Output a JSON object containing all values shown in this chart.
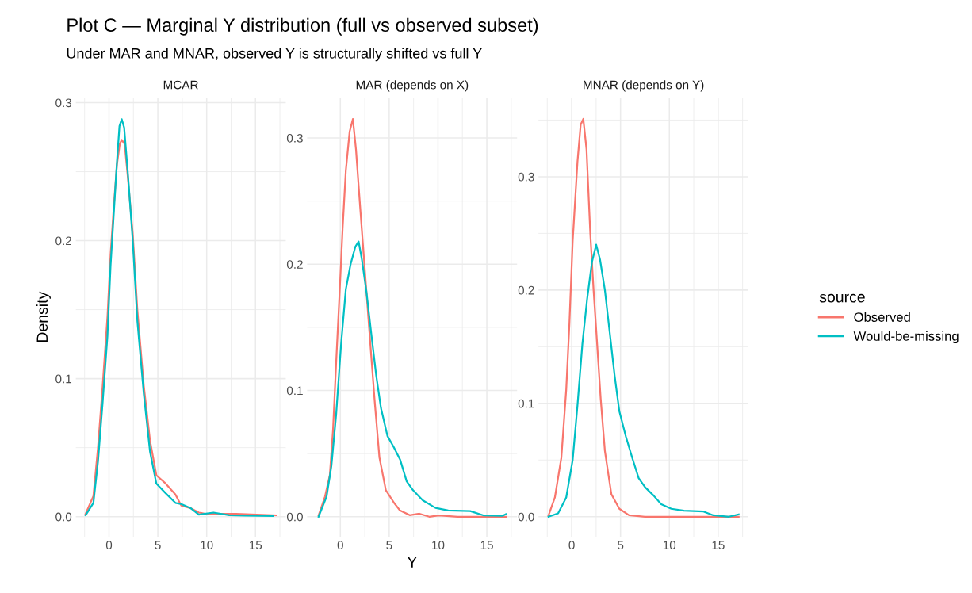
{
  "chart_data": [
    {
      "type": "line",
      "title": "MCAR",
      "ylabel": "Density",
      "annotations": [
        "Plot C — Marginal Y distribution (full vs observed subset)",
        "Under MAR and MNAR, observed Y is structurally shifted vs full Y"
      ],
      "xlim": [
        -3.4,
        18.1
      ],
      "xticks": [
        {
          "value": -2.5,
          "label": null
        },
        0,
        {
          "value": 2.5,
          "label": null
        },
        5,
        {
          "value": 7.5,
          "label": null
        },
        10,
        {
          "value": 12.5,
          "label": null
        },
        15,
        {
          "value": 17.5,
          "label": null
        }
      ],
      "ylim": [
        -0.0145,
        0.3035
      ],
      "yticks": [
        {
          "value": 0,
          "label": "0.0"
        },
        {
          "value": 0.05,
          "label": null
        },
        0.1,
        {
          "value": 0.15,
          "label": null
        },
        0.2,
        {
          "value": 0.25,
          "label": null
        },
        0.3
      ],
      "grid": true,
      "line_style": "solid",
      "marker": "none",
      "series": [
        {
          "color": "#f8766d",
          "x": [
            -2.4,
            -1.6,
            -1.13,
            -0.65,
            -0.16,
            0.16,
            0.49,
            0.81,
            1.1,
            1.3,
            1.6,
            1.94,
            2.43,
            2.9,
            3.56,
            4.2,
            4.85,
            5.8,
            6.8,
            7.4,
            8.4,
            9.2,
            10.0,
            11.0,
            13.0,
            17.1
          ],
          "values": [
            0.002,
            0.015,
            0.05,
            0.095,
            0.145,
            0.19,
            0.225,
            0.255,
            0.27,
            0.273,
            0.27,
            0.245,
            0.205,
            0.15,
            0.095,
            0.055,
            0.03,
            0.024,
            0.016,
            0.008,
            0.006,
            0.003,
            0.002,
            0.002,
            0.002,
            0.001
          ]
        },
        {
          "color": "#00bfc4",
          "x": [
            -2.4,
            -1.6,
            -1.13,
            -0.65,
            -0.16,
            0.16,
            0.49,
            0.81,
            1.07,
            1.3,
            1.55,
            1.94,
            2.43,
            2.9,
            3.56,
            4.2,
            4.85,
            5.8,
            6.8,
            7.44,
            8.4,
            9.2,
            10.7,
            12.3,
            13.9,
            16.8
          ],
          "values": [
            0.001,
            0.01,
            0.04,
            0.083,
            0.131,
            0.182,
            0.22,
            0.257,
            0.283,
            0.288,
            0.282,
            0.248,
            0.2,
            0.142,
            0.089,
            0.047,
            0.024,
            0.017,
            0.01,
            0.009,
            0.006,
            0.0015,
            0.003,
            0.001,
            0.0007,
            0.0005
          ]
        }
      ]
    },
    {
      "type": "line",
      "title": "MAR (depends on X)",
      "xlabel": "Y",
      "xlim": [
        -3.4,
        18.1
      ],
      "xticks": [
        {
          "value": -2.5,
          "label": null
        },
        0,
        {
          "value": 2.5,
          "label": null
        },
        5,
        {
          "value": 7.5,
          "label": null
        },
        10,
        {
          "value": 12.5,
          "label": null
        },
        15,
        {
          "value": 17.5,
          "label": null
        }
      ],
      "ylim": [
        -0.0158,
        0.3318
      ],
      "yticks": [
        {
          "value": 0,
          "label": "0.0"
        },
        {
          "value": 0.05,
          "label": null
        },
        0.1,
        {
          "value": 0.15,
          "label": null
        },
        0.2,
        {
          "value": 0.25,
          "label": null
        },
        0.3
      ],
      "grid": true,
      "line_style": "solid",
      "marker": "none",
      "series": [
        {
          "color": "#f8766d",
          "x": [
            -2.23,
            -1.57,
            -1.08,
            -0.75,
            -0.43,
            -0.03,
            0.23,
            0.56,
            0.95,
            1.28,
            1.6,
            2.03,
            2.52,
            3.0,
            3.5,
            4.0,
            4.66,
            5.5,
            6.1,
            7.1,
            8.1,
            9.1,
            10.1,
            12.0,
            13.7,
            16.97
          ],
          "values": [
            0.001,
            0.016,
            0.033,
            0.069,
            0.122,
            0.185,
            0.228,
            0.274,
            0.305,
            0.315,
            0.291,
            0.245,
            0.194,
            0.144,
            0.093,
            0.047,
            0.021,
            0.011,
            0.005,
            0.0012,
            0.0024,
            0.0,
            0.001,
            0.0,
            0.0,
            0.0
          ]
        },
        {
          "color": "#00bfc4",
          "x": [
            -2.23,
            -1.41,
            -0.92,
            -0.43,
            0.07,
            0.56,
            1.05,
            1.54,
            1.87,
            2.2,
            2.69,
            3.18,
            3.67,
            4.16,
            4.82,
            5.48,
            6.13,
            6.79,
            7.44,
            8.43,
            9.74,
            11.05,
            13.3,
            14.7,
            16.6,
            16.95
          ],
          "values": [
            0.0,
            0.016,
            0.04,
            0.081,
            0.136,
            0.18,
            0.2,
            0.214,
            0.218,
            0.204,
            0.177,
            0.144,
            0.112,
            0.086,
            0.064,
            0.055,
            0.045,
            0.028,
            0.021,
            0.013,
            0.007,
            0.005,
            0.0045,
            0.001,
            0.0007,
            0.002
          ]
        }
      ]
    },
    {
      "type": "line",
      "title": "MNAR (depends on Y)",
      "legend": "right",
      "legend_title": "source",
      "xlim": [
        -3.4,
        18.1
      ],
      "xticks": [
        {
          "value": -2.5,
          "label": null
        },
        0,
        {
          "value": 2.5,
          "label": null
        },
        5,
        {
          "value": 7.5,
          "label": null
        },
        10,
        {
          "value": 12.5,
          "label": null
        },
        15,
        {
          "value": 17.5,
          "label": null
        }
      ],
      "ylim": [
        -0.0176,
        0.3696
      ],
      "yticks": [
        {
          "value": 0,
          "label": "0.0"
        },
        {
          "value": 0.05,
          "label": null
        },
        0.1,
        {
          "value": 0.15,
          "label": null
        },
        0.2,
        {
          "value": 0.25,
          "label": null
        },
        0.3,
        {
          "value": 0.35,
          "label": null
        }
      ],
      "grid": true,
      "line_style": "solid",
      "marker": "none",
      "series": [
        {
          "name": "Observed",
          "color": "#f8766d",
          "x": [
            -2.38,
            -1.72,
            -1.06,
            -0.56,
            -0.23,
            0.1,
            0.59,
            0.92,
            1.19,
            1.52,
            1.91,
            2.24,
            2.57,
            2.97,
            3.4,
            4.06,
            4.88,
            5.87,
            7.5,
            17.1
          ],
          "values": [
            0.001,
            0.017,
            0.052,
            0.112,
            0.171,
            0.243,
            0.313,
            0.346,
            0.351,
            0.324,
            0.249,
            0.2,
            0.157,
            0.104,
            0.058,
            0.02,
            0.007,
            0.0013,
            0.0,
            0.0
          ]
        },
        {
          "name": "Would-be-missing",
          "color": "#00bfc4",
          "x": [
            -2.38,
            -1.39,
            -0.56,
            0.1,
            0.59,
            1.09,
            1.58,
            2.08,
            2.51,
            2.9,
            3.4,
            3.89,
            4.39,
            4.88,
            5.54,
            6.2,
            6.86,
            7.52,
            8.35,
            9.17,
            10.2,
            11.5,
            13.5,
            14.5,
            16.1,
            17.1
          ],
          "values": [
            0.0,
            0.003,
            0.017,
            0.05,
            0.098,
            0.152,
            0.192,
            0.225,
            0.24,
            0.227,
            0.2,
            0.163,
            0.125,
            0.093,
            0.071,
            0.052,
            0.034,
            0.026,
            0.019,
            0.011,
            0.007,
            0.0054,
            0.0046,
            0.0013,
            0.0,
            0.002
          ]
        }
      ]
    }
  ]
}
